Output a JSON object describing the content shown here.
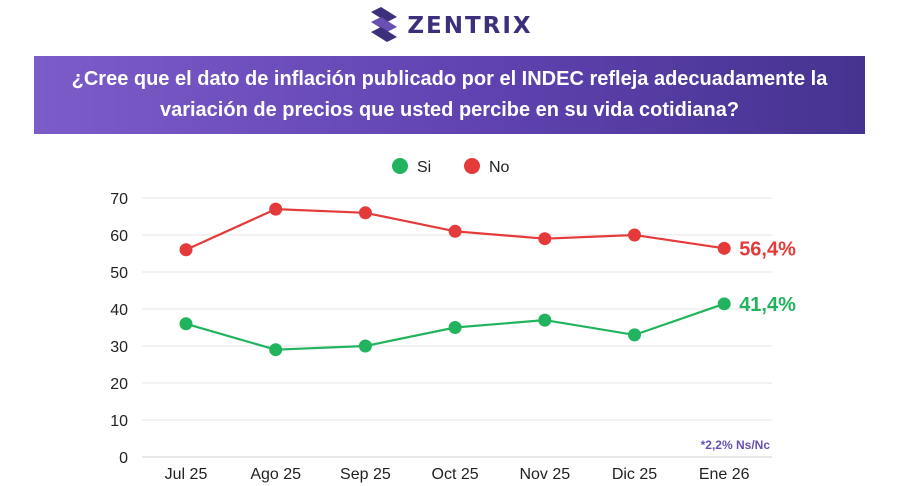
{
  "brand": {
    "name": "ZENTRIX",
    "color": "#3d2f7c"
  },
  "question": "¿Cree que el dato de inflación publicado por el INDEC refleja adecuadamente la variación de precios que usted percibe en su vida cotidiana?",
  "colors": {
    "si": "#22b35e",
    "no": "#e53a3a",
    "banner": "#5f42b0",
    "note": "#6a4fb3"
  },
  "chart_data": {
    "type": "line",
    "categories": [
      "Jul 25",
      "Ago 25",
      "Sep 25",
      "Oct 25",
      "Nov 25",
      "Dic 25",
      "Ene 26"
    ],
    "series": [
      {
        "name": "Si",
        "values": [
          36,
          29,
          30,
          35,
          37,
          33,
          41.4
        ],
        "end_label": "41,4%",
        "color": "#22b35e"
      },
      {
        "name": "No",
        "values": [
          56,
          67,
          66,
          61,
          59,
          60,
          56.4
        ],
        "end_label": "56,4%",
        "color": "#e53a3a"
      }
    ],
    "ylim": [
      0,
      70
    ],
    "yticks": [
      0,
      10,
      20,
      30,
      40,
      50,
      60,
      70
    ],
    "grid": true,
    "legend": "top-center",
    "note": "*2,2% Ns/Nc"
  }
}
